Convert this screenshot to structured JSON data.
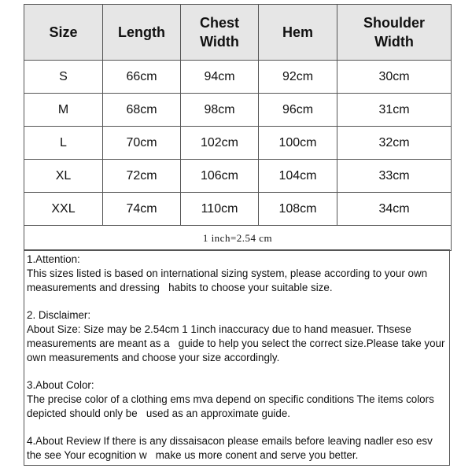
{
  "table": {
    "headers": [
      "Size",
      "Length",
      "Chest\nWidth",
      "Hem",
      "Shoulder\nWidth"
    ],
    "rows": [
      [
        "S",
        "66cm",
        "94cm",
        "92cm",
        "30cm"
      ],
      [
        "M",
        "68cm",
        "98cm",
        "96cm",
        "31cm"
      ],
      [
        "L",
        "70cm",
        "102cm",
        "100cm",
        "32cm"
      ],
      [
        "XL",
        "72cm",
        "106cm",
        "104cm",
        "33cm"
      ],
      [
        "XXL",
        "74cm",
        "110cm",
        "108cm",
        "34cm"
      ]
    ],
    "conversion": "1 inch=2.54 cm",
    "header_bg": "#e6e6e6"
  },
  "notes": [
    {
      "title": "1.Attention:",
      "body": "This sizes listed is based on international sizing system, please according to your own measurements and dressing   habits to choose your suitable size."
    },
    {
      "title": "2. Disclaimer:",
      "body": "About Size: Size may be 2.54cm 1 1inch inaccuracy due to hand measuer. Thsese measurements are meant as a   guide to help you select the correct size.Please take your own measurements and choose your size accordingly."
    },
    {
      "title": "3.About Color:",
      "body": "The precise color of a clothing ems mva depend on specific conditions The items colors depicted should only be   used as an approximate guide."
    },
    {
      "title": "",
      "body": "4.About Review If there is any dissaisacon please emails before leaving nadler eso esv the see Your ecognition w   make us more conent and serve you better."
    }
  ]
}
